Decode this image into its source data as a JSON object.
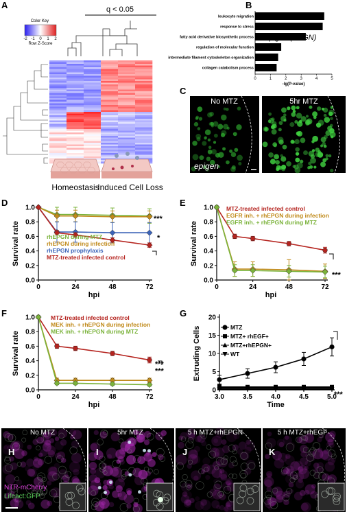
{
  "panel_labels": {
    "A": "A",
    "B": "B",
    "C": "C",
    "D": "D",
    "E": "E",
    "F": "F",
    "G": "G",
    "H": "H",
    "I": "I",
    "J": "J",
    "K": "K"
  },
  "colors": {
    "red": "#b5231e",
    "olive": "#c08a1a",
    "green": "#7bb33b",
    "blue": "#3b63b8",
    "dark": "#000000",
    "magenta": "#d43bd6",
    "lime": "#5cd65c"
  },
  "panel_a": {
    "color_key_title": "Color Key",
    "key_ticks": [
      "-2",
      "-1",
      "0",
      "1",
      "2"
    ],
    "key_axis_label": "Row Z-Score",
    "significance": "q < 0.05",
    "caption_left": "Homeostasis",
    "caption_right": "Induced Cell Loss"
  },
  "panel_c": {
    "label_left": "No MTZ",
    "label_right": "5hr MTZ",
    "gene_label": "epigen"
  },
  "panel_h_k": {
    "labels": [
      "No MTZ",
      "5hr MTZ",
      "5 h MTZ+rhEPGN",
      "5 h MTZ+rhEGF"
    ],
    "channel_1": "NTR-mCherry",
    "channel_2": "Lifeact:GFP"
  },
  "chart_data": [
    {
      "id": "B",
      "type": "bar",
      "categories": [
        "leukocyte migration",
        "response to stress",
        "fatty acid derivative biosynthetic process",
        "regulation of molecular function",
        "intermediate filament cytoskeleton organization",
        "collagen catabolism process"
      ],
      "values": [
        4.5,
        4.4,
        3.3,
        1.7,
        1.5,
        1.4
      ],
      "xlabel": "-lg(P-value)",
      "xlim": [
        0,
        5
      ],
      "xticks": [
        "0",
        "1",
        "2",
        "3",
        "4",
        "5"
      ],
      "annotation": "epigen (EPGN)"
    },
    {
      "id": "D",
      "type": "line",
      "x": [
        0,
        12,
        24,
        48,
        72
      ],
      "xticks": [
        "0",
        "24",
        "48",
        "72"
      ],
      "xlabel": "hpi",
      "ylabel": "Survival rate",
      "ylim": [
        0,
        1.0
      ],
      "yticks": [
        "0.0",
        "0.2",
        "0.4",
        "0.6",
        "0.8",
        "1.0"
      ],
      "series": [
        {
          "name": "rhEPGN during MTZ",
          "color": "green",
          "values": [
            1.0,
            0.9,
            0.9,
            0.89,
            0.88
          ],
          "err": [
            0,
            0.1,
            0.1,
            0.1,
            0.1
          ],
          "marker": "diamond"
        },
        {
          "name": "rhEPGN during infection",
          "color": "olive",
          "values": [
            1.0,
            0.88,
            0.88,
            0.87,
            0.87
          ],
          "err": [
            0,
            0.08,
            0.08,
            0.08,
            0.08
          ],
          "marker": "diamond"
        },
        {
          "name": "rhEPGN prophylaxis",
          "color": "blue",
          "values": [
            1.0,
            0.66,
            0.66,
            0.65,
            0.65
          ],
          "err": [
            0,
            0.14,
            0.14,
            0.14,
            0.14
          ],
          "marker": "diamond"
        },
        {
          "name": "MTZ-treated infected control",
          "color": "red",
          "values": [
            1.0,
            0.65,
            0.62,
            0.55,
            0.48
          ],
          "err": [
            0,
            0.03,
            0.03,
            0.03,
            0.03
          ],
          "marker": "diamond"
        }
      ],
      "significance": [
        "***",
        "*"
      ]
    },
    {
      "id": "E",
      "type": "line",
      "x": [
        0,
        12,
        24,
        48,
        72
      ],
      "xticks": [
        "0",
        "24",
        "48",
        "72"
      ],
      "xlabel": "hpi",
      "ylabel": "Survival rate",
      "ylim": [
        0,
        1.0
      ],
      "yticks": [
        "0.0",
        "0.2",
        "0.4",
        "0.6",
        "0.8",
        "1.0"
      ],
      "series": [
        {
          "name": "MTZ-treated infected control",
          "color": "red",
          "values": [
            1.0,
            0.6,
            0.57,
            0.5,
            0.41
          ],
          "err": [
            0,
            0.03,
            0.03,
            0.03,
            0.04
          ],
          "marker": "circle"
        },
        {
          "name": "EGFR inh. + rhEPGN during infection",
          "color": "olive",
          "values": [
            1.0,
            0.15,
            0.15,
            0.14,
            0.12
          ],
          "err": [
            0,
            0.1,
            0.1,
            0.14,
            0.1
          ],
          "marker": "diamond"
        },
        {
          "name": "EGFR inh. + rhEPGN during MTZ",
          "color": "green",
          "values": [
            1.0,
            0.13,
            0.13,
            0.12,
            0.11
          ],
          "err": [
            0,
            0.08,
            0.08,
            0.08,
            0.08
          ],
          "marker": "diamond"
        }
      ],
      "significance": [
        "***"
      ]
    },
    {
      "id": "F",
      "type": "line",
      "x": [
        0,
        12,
        24,
        48,
        72
      ],
      "xticks": [
        "0",
        "24",
        "48",
        "72"
      ],
      "xlabel": "hpi",
      "ylabel": "Survival rate",
      "ylim": [
        0,
        1.0
      ],
      "yticks": [
        "0.0",
        "0.2",
        "0.4",
        "0.6",
        "0.8",
        "1.0"
      ],
      "series": [
        {
          "name": "MTZ-treated infected control",
          "color": "red",
          "values": [
            1.0,
            0.6,
            0.57,
            0.5,
            0.41
          ],
          "err": [
            0,
            0.03,
            0.03,
            0.03,
            0.04
          ],
          "marker": "circle"
        },
        {
          "name": "MEK inh. + rhEPGN during infection",
          "color": "olive",
          "values": [
            1.0,
            0.13,
            0.13,
            0.13,
            0.13
          ],
          "err": [
            0,
            0.03,
            0.03,
            0.03,
            0.03
          ],
          "marker": "diamond"
        },
        {
          "name": "MEK inh. + rhEPGN during MTZ",
          "color": "green",
          "values": [
            1.0,
            0.09,
            0.09,
            0.08,
            0.07
          ],
          "err": [
            0,
            0.02,
            0.02,
            0.02,
            0.02
          ],
          "marker": "diamond"
        }
      ],
      "significance": [
        "***",
        "***"
      ]
    },
    {
      "id": "G",
      "type": "line",
      "x": [
        3.0,
        3.5,
        4.0,
        4.5,
        5.0
      ],
      "xticks": [
        "3.0",
        "3.5",
        "4.0",
        "4.5",
        "5.0"
      ],
      "xlabel": "Time",
      "ylabel": "Extruding Cells",
      "ylim": [
        0,
        20
      ],
      "yticks": [
        "0",
        "5",
        "10",
        "15",
        "20"
      ],
      "series": [
        {
          "name": "MTZ",
          "color": "dark",
          "values": [
            2.8,
            4.5,
            6.2,
            8.5,
            11.8
          ],
          "err": [
            1.2,
            1.3,
            1.5,
            1.8,
            2.5
          ],
          "marker": "circle"
        },
        {
          "name": "MTZ+ rhEGF+",
          "color": "dark",
          "values": [
            0.8,
            0.8,
            0.8,
            0.8,
            0.8
          ],
          "err": [
            0.6,
            0.4,
            0.4,
            0.4,
            0.4
          ],
          "marker": "square"
        },
        {
          "name": "MTZ+rhEPGN+",
          "color": "dark",
          "values": [
            0.5,
            0.5,
            0.5,
            0.5,
            0.5
          ],
          "err": [
            0.3,
            0.3,
            0.3,
            0.3,
            0.3
          ],
          "marker": "triangle"
        },
        {
          "name": "WT",
          "color": "dark",
          "values": [
            0.2,
            0.2,
            0.2,
            0.2,
            0.2
          ],
          "err": [
            0.2,
            0.2,
            0.2,
            0.2,
            0.2
          ],
          "marker": "invtriangle"
        }
      ],
      "significance": [
        "***"
      ]
    }
  ]
}
